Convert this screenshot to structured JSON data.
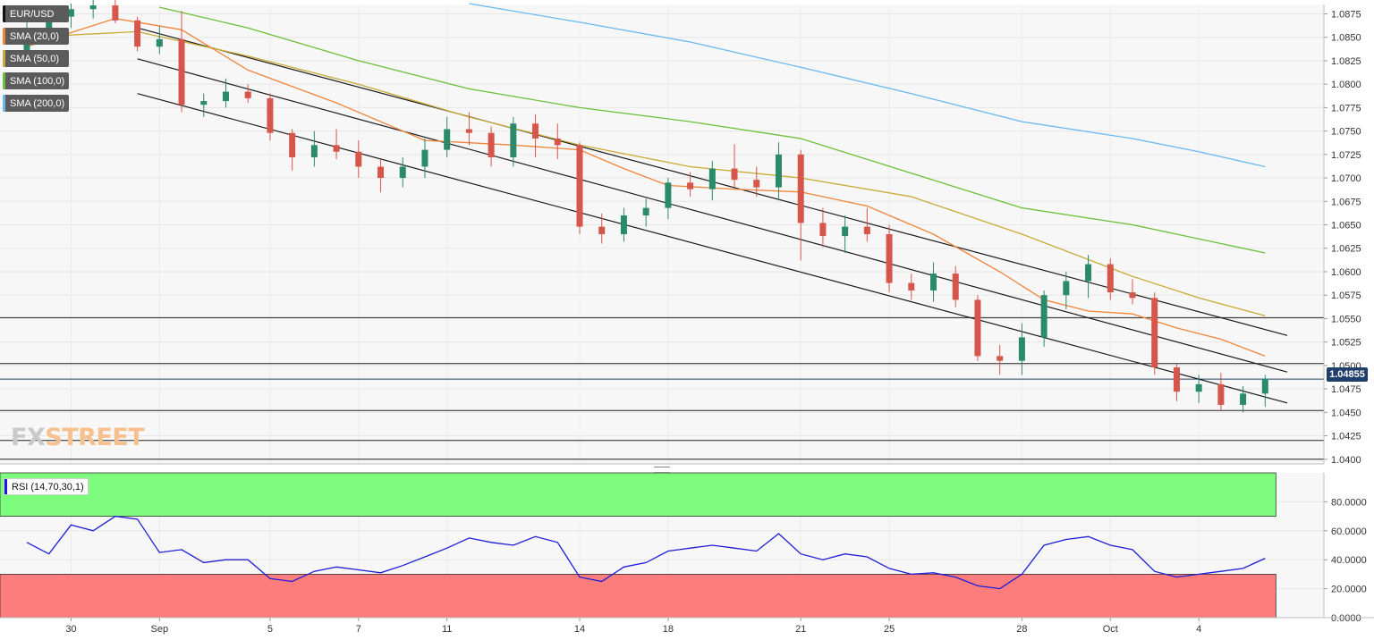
{
  "colors": {
    "up": "#2a8a6a",
    "down": "#d6564b",
    "sma20": "#f0843a",
    "sma50": "#c8aa35",
    "sma100": "#6cbf3a",
    "sma200": "#69b9ef",
    "rsi_line": "#1d1dd8",
    "rsi_overbought_fill": "#7dfc7d",
    "rsi_oversold_fill": "#fd7c7c",
    "price_tag": "#1f3f6b"
  },
  "legend": [
    {
      "label": "EUR/USD",
      "color": "#111111",
      "icon": "instrument"
    },
    {
      "label": "SMA (20,0)",
      "color": "#f0843a",
      "icon": "sma-20"
    },
    {
      "label": "SMA (50,0)",
      "color": "#c8aa35",
      "icon": "sma-50"
    },
    {
      "label": "SMA (100,0)",
      "color": "#6cbf3a",
      "icon": "sma-100"
    },
    {
      "label": "SMA (200,0)",
      "color": "#69b9ef",
      "icon": "sma-200"
    }
  ],
  "rsi": {
    "label": "RSI (14,70,30,1)"
  },
  "logo": {
    "fx": "FX",
    "street": "STREET"
  },
  "last_price": "1.04855",
  "chart_data": [
    {
      "type": "candlestick",
      "title": "EUR/USD",
      "x_axis_labels": [
        {
          "label": "30",
          "candle": 2
        },
        {
          "label": "Sep",
          "candle": 6
        },
        {
          "label": "5",
          "candle": 11
        },
        {
          "label": "7",
          "candle": 15
        },
        {
          "label": "11",
          "candle": 19
        },
        {
          "label": "14",
          "candle": 25
        },
        {
          "label": "18",
          "candle": 29
        },
        {
          "label": "21",
          "candle": 35
        },
        {
          "label": "25",
          "candle": 39
        },
        {
          "label": "28",
          "candle": 45
        },
        {
          "label": "Oct",
          "candle": 49
        },
        {
          "label": "4",
          "candle": 53
        }
      ],
      "y_ticks": [
        "1.0875",
        "1.0850",
        "1.0825",
        "1.0800",
        "1.0775",
        "1.0750",
        "1.0725",
        "1.0700",
        "1.0675",
        "1.0650",
        "1.0625",
        "1.0600",
        "1.0575",
        "1.0550",
        "1.0525",
        "1.0500",
        "1.0475",
        "1.0450",
        "1.0425",
        "1.0400"
      ],
      "ylim": [
        1.0395,
        1.0885
      ],
      "candles": [
        [
          1.083,
          1.0868,
          1.082,
          1.0858
        ],
        [
          1.0858,
          1.088,
          1.0846,
          1.0872
        ],
        [
          1.0872,
          1.0886,
          1.086,
          1.088
        ],
        [
          1.088,
          1.089,
          1.087,
          1.0884
        ],
        [
          1.0884,
          1.089,
          1.0865,
          1.0868
        ],
        [
          1.0868,
          1.0872,
          1.0835,
          1.084
        ],
        [
          1.084,
          1.0862,
          1.0832,
          1.0848
        ],
        [
          1.0848,
          1.0878,
          1.077,
          1.0778
        ],
        [
          1.0778,
          1.079,
          1.0765,
          1.0782
        ],
        [
          1.0782,
          1.0806,
          1.0775,
          1.0792
        ],
        [
          1.0792,
          1.08,
          1.078,
          1.0785
        ],
        [
          1.0785,
          1.079,
          1.074,
          1.0748
        ],
        [
          1.0748,
          1.0752,
          1.0708,
          1.0722
        ],
        [
          1.0722,
          1.075,
          1.0712,
          1.0735
        ],
        [
          1.0735,
          1.0752,
          1.072,
          1.0728
        ],
        [
          1.0728,
          1.074,
          1.07,
          1.0712
        ],
        [
          1.0712,
          1.072,
          1.0685,
          1.07
        ],
        [
          1.07,
          1.0722,
          1.069,
          1.0712
        ],
        [
          1.0712,
          1.0742,
          1.07,
          1.073
        ],
        [
          1.073,
          1.0765,
          1.0722,
          1.0752
        ],
        [
          1.0752,
          1.077,
          1.0735,
          1.0748
        ],
        [
          1.0748,
          1.0755,
          1.0712,
          1.0722
        ],
        [
          1.0722,
          1.0765,
          1.0712,
          1.0758
        ],
        [
          1.0758,
          1.0768,
          1.0722,
          1.0742
        ],
        [
          1.0742,
          1.0758,
          1.072,
          1.0735
        ],
        [
          1.0735,
          1.0738,
          1.064,
          1.0648
        ],
        [
          1.0648,
          1.0662,
          1.063,
          1.064
        ],
        [
          1.064,
          1.0668,
          1.0632,
          1.066
        ],
        [
          1.066,
          1.0678,
          1.0648,
          1.0668
        ],
        [
          1.0668,
          1.07,
          1.0656,
          1.0695
        ],
        [
          1.0695,
          1.0706,
          1.068,
          1.0688
        ],
        [
          1.0688,
          1.0718,
          1.0676,
          1.071
        ],
        [
          1.071,
          1.0736,
          1.069,
          1.0698
        ],
        [
          1.0698,
          1.0712,
          1.068,
          1.069
        ],
        [
          1.069,
          1.0738,
          1.0676,
          1.0725
        ],
        [
          1.0725,
          1.073,
          1.0612,
          1.0652
        ],
        [
          1.0652,
          1.0668,
          1.0626,
          1.0638
        ],
        [
          1.0638,
          1.066,
          1.062,
          1.0648
        ],
        [
          1.0648,
          1.0668,
          1.0632,
          1.064
        ],
        [
          1.064,
          1.065,
          1.0578,
          1.0588
        ],
        [
          1.0588,
          1.0598,
          1.057,
          1.058
        ],
        [
          1.058,
          1.061,
          1.0568,
          1.0598
        ],
        [
          1.0598,
          1.0606,
          1.0562,
          1.057
        ],
        [
          1.057,
          1.0575,
          1.0505,
          1.051
        ],
        [
          1.051,
          1.0522,
          1.049,
          1.0505
        ],
        [
          1.0505,
          1.0545,
          1.049,
          1.053
        ],
        [
          1.053,
          1.058,
          1.052,
          1.0575
        ],
        [
          1.0575,
          1.06,
          1.056,
          1.059
        ],
        [
          1.059,
          1.0618,
          1.0572,
          1.0608
        ],
        [
          1.0608,
          1.0614,
          1.057,
          1.0578
        ],
        [
          1.0578,
          1.0592,
          1.0565,
          1.0572
        ],
        [
          1.0572,
          1.0578,
          1.049,
          1.0498
        ],
        [
          1.0498,
          1.0502,
          1.0462,
          1.0472
        ],
        [
          1.0472,
          1.049,
          1.046,
          1.048
        ],
        [
          1.048,
          1.0492,
          1.0452,
          1.0458
        ],
        [
          1.0458,
          1.0478,
          1.045,
          1.047
        ],
        [
          1.047,
          1.049,
          1.0456,
          1.0486
        ]
      ],
      "sma_20": [
        [
          0,
          1.084
        ],
        [
          4,
          1.087
        ],
        [
          7,
          1.0858
        ],
        [
          10,
          1.0815
        ],
        [
          14,
          1.078
        ],
        [
          18,
          1.074
        ],
        [
          22,
          1.0735
        ],
        [
          25,
          1.073
        ],
        [
          27,
          1.071
        ],
        [
          29,
          1.0692
        ],
        [
          32,
          1.0688
        ],
        [
          35,
          1.0685
        ],
        [
          38,
          1.067
        ],
        [
          41,
          1.064
        ],
        [
          44,
          1.06
        ],
        [
          46,
          1.057
        ],
        [
          48,
          1.0558
        ],
        [
          50,
          1.0555
        ],
        [
          52,
          1.054
        ],
        [
          54,
          1.0528
        ],
        [
          56,
          1.051
        ]
      ],
      "sma_50": [
        [
          0,
          1.085
        ],
        [
          5,
          1.0856
        ],
        [
          10,
          1.083
        ],
        [
          15,
          1.08
        ],
        [
          20,
          1.0765
        ],
        [
          25,
          1.0735
        ],
        [
          30,
          1.0712
        ],
        [
          35,
          1.07
        ],
        [
          40,
          1.068
        ],
        [
          45,
          1.064
        ],
        [
          50,
          1.0595
        ],
        [
          53,
          1.0572
        ],
        [
          56,
          1.0553
        ]
      ],
      "sma_100": [
        [
          6,
          1.0882
        ],
        [
          10,
          1.086
        ],
        [
          15,
          1.0825
        ],
        [
          20,
          1.0795
        ],
        [
          25,
          1.0775
        ],
        [
          30,
          1.076
        ],
        [
          35,
          1.0742
        ],
        [
          40,
          1.0705
        ],
        [
          45,
          1.0668
        ],
        [
          50,
          1.065
        ],
        [
          53,
          1.0635
        ],
        [
          56,
          1.062
        ]
      ],
      "sma_200": [
        [
          20,
          1.0886
        ],
        [
          25,
          1.0866
        ],
        [
          30,
          1.0845
        ],
        [
          35,
          1.0818
        ],
        [
          40,
          1.079
        ],
        [
          45,
          1.076
        ],
        [
          50,
          1.0742
        ],
        [
          53,
          1.0728
        ],
        [
          56,
          1.0712
        ]
      ],
      "channel_lines": [
        {
          "from": [
            5,
            1.086
          ],
          "to": [
            57,
            1.0532
          ]
        },
        {
          "from": [
            5,
            1.0827
          ],
          "to": [
            57,
            1.0493
          ]
        },
        {
          "from": [
            5,
            1.079
          ],
          "to": [
            57,
            1.046
          ]
        }
      ],
      "horizontal_levels": [
        1.0551,
        1.0502,
        1.0452,
        1.042,
        1.04
      ],
      "last_price_level": 1.04855
    },
    {
      "type": "line",
      "title": "RSI (14,70,30,1)",
      "y_ticks": [
        "80.0000",
        "60.0000",
        "40.0000",
        "20.0000",
        "0.0000"
      ],
      "ylim": [
        0,
        100
      ],
      "overbought": 70,
      "oversold": 30,
      "values": [
        [
          0,
          52
        ],
        [
          1,
          44
        ],
        [
          2,
          64
        ],
        [
          3,
          60
        ],
        [
          4,
          70
        ],
        [
          5,
          68
        ],
        [
          6,
          45
        ],
        [
          7,
          47
        ],
        [
          8,
          38
        ],
        [
          9,
          40
        ],
        [
          10,
          40
        ],
        [
          11,
          27
        ],
        [
          12,
          25
        ],
        [
          13,
          32
        ],
        [
          14,
          35
        ],
        [
          15,
          33
        ],
        [
          16,
          31
        ],
        [
          17,
          36
        ],
        [
          18,
          42
        ],
        [
          19,
          48
        ],
        [
          20,
          55
        ],
        [
          21,
          52
        ],
        [
          22,
          50
        ],
        [
          23,
          56
        ],
        [
          24,
          52
        ],
        [
          25,
          28
        ],
        [
          26,
          25
        ],
        [
          27,
          35
        ],
        [
          28,
          38
        ],
        [
          29,
          46
        ],
        [
          30,
          48
        ],
        [
          31,
          50
        ],
        [
          32,
          48
        ],
        [
          33,
          46
        ],
        [
          34,
          58
        ],
        [
          35,
          44
        ],
        [
          36,
          40
        ],
        [
          37,
          44
        ],
        [
          38,
          42
        ],
        [
          39,
          34
        ],
        [
          40,
          30
        ],
        [
          41,
          31
        ],
        [
          42,
          28
        ],
        [
          43,
          22
        ],
        [
          44,
          20
        ],
        [
          45,
          30
        ],
        [
          46,
          50
        ],
        [
          47,
          54
        ],
        [
          48,
          56
        ],
        [
          49,
          50
        ],
        [
          50,
          47
        ],
        [
          51,
          32
        ],
        [
          52,
          28
        ],
        [
          53,
          30
        ],
        [
          54,
          32
        ],
        [
          55,
          34
        ],
        [
          56,
          41
        ]
      ]
    }
  ]
}
